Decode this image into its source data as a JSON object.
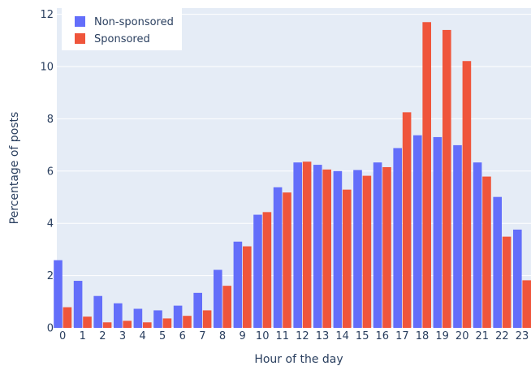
{
  "chart_data": {
    "type": "bar",
    "xlabel": "Hour of the day",
    "ylabel": "Percentage of posts",
    "ylim": [
      0,
      12.2
    ],
    "yticks": [
      0,
      2,
      4,
      6,
      8,
      10,
      12
    ],
    "grid": true,
    "legend_position": "top-left",
    "categories": [
      "0",
      "1",
      "2",
      "3",
      "4",
      "5",
      "6",
      "7",
      "8",
      "9",
      "10",
      "11",
      "12",
      "13",
      "14",
      "15",
      "16",
      "17",
      "18",
      "19",
      "20",
      "21",
      "22",
      "23"
    ],
    "series": [
      {
        "name": "Non-sponsored",
        "color": "#636efa",
        "values": [
          2.59,
          1.8,
          1.22,
          0.94,
          0.73,
          0.67,
          0.85,
          1.34,
          2.22,
          3.3,
          4.33,
          5.38,
          6.33,
          6.24,
          6.0,
          6.04,
          6.33,
          6.88,
          7.37,
          7.3,
          6.99,
          6.33,
          5.01,
          3.76
        ]
      },
      {
        "name": "Sponsored",
        "color": "#ef553b",
        "values": [
          0.79,
          0.43,
          0.21,
          0.27,
          0.21,
          0.36,
          0.46,
          0.67,
          1.61,
          3.12,
          4.43,
          5.18,
          6.36,
          6.06,
          5.29,
          5.82,
          6.15,
          8.25,
          11.7,
          11.4,
          10.21,
          5.79,
          3.49,
          1.82
        ]
      }
    ]
  }
}
